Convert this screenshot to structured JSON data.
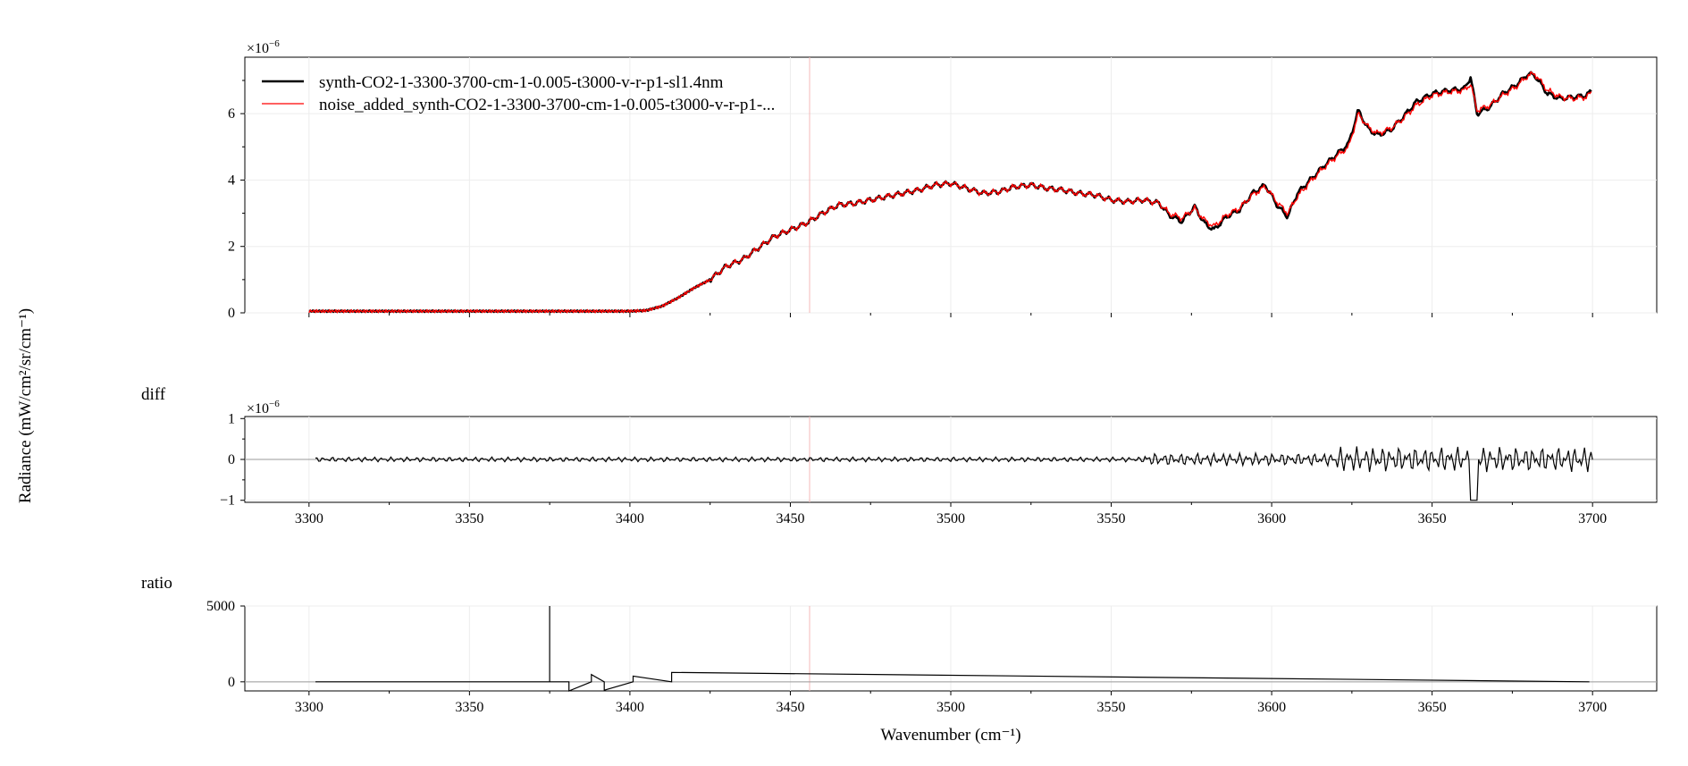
{
  "chart_data": [
    {
      "type": "line",
      "panel": "spectrum",
      "xlim": [
        3280,
        3720
      ],
      "ylim": [
        0,
        7.7
      ],
      "y_multiplier": "×10",
      "y_exponent": "−6",
      "yticks": [
        "0",
        "2",
        "4",
        "6"
      ],
      "ylabel": "Radiance (mW/cm²/sr/cm⁻¹)",
      "grid": true,
      "legend": "top-left",
      "series": [
        {
          "name": "synth-CO2-1-3300-3700-cm-1-0.005-t3000-v-r-p1-sl1.4nm",
          "color": "#000000",
          "x": [
            3300,
            3350,
            3400,
            3405,
            3410,
            3415,
            3420,
            3425,
            3430,
            3435,
            3440,
            3445,
            3450,
            3455,
            3460,
            3465,
            3470,
            3475,
            3480,
            3485,
            3490,
            3495,
            3500,
            3505,
            3510,
            3515,
            3520,
            3525,
            3530,
            3535,
            3540,
            3545,
            3550,
            3555,
            3560,
            3565,
            3568,
            3572,
            3576,
            3579,
            3582,
            3586,
            3590,
            3594,
            3598,
            3602,
            3605,
            3608,
            3612,
            3616,
            3620,
            3624,
            3627,
            3630,
            3633,
            3637,
            3641,
            3645,
            3650,
            3655,
            3660,
            3662,
            3664,
            3668,
            3672,
            3676,
            3680,
            3682,
            3686,
            3690,
            3694,
            3698,
            3700
          ],
          "y": [
            0.05,
            0.05,
            0.05,
            0.07,
            0.2,
            0.45,
            0.75,
            1.0,
            1.4,
            1.6,
            1.95,
            2.3,
            2.5,
            2.7,
            3.0,
            3.25,
            3.3,
            3.4,
            3.5,
            3.6,
            3.7,
            3.85,
            3.9,
            3.75,
            3.6,
            3.65,
            3.8,
            3.85,
            3.75,
            3.7,
            3.6,
            3.55,
            3.4,
            3.35,
            3.4,
            3.3,
            2.95,
            2.75,
            3.2,
            2.7,
            2.5,
            2.9,
            3.1,
            3.6,
            3.85,
            3.2,
            2.9,
            3.6,
            4.0,
            4.4,
            4.75,
            5.1,
            6.1,
            5.55,
            5.35,
            5.5,
            5.9,
            6.35,
            6.6,
            6.7,
            6.75,
            7.1,
            6.0,
            6.2,
            6.6,
            6.85,
            7.2,
            7.15,
            6.6,
            6.45,
            6.5,
            6.55,
            6.7
          ]
        },
        {
          "name": "noise_added_synth-CO2-1-3300-3700-cm-1-0.005-t3000-v-r-p1-...",
          "color": "#ff0000",
          "x": [
            3300,
            3350,
            3400,
            3405,
            3410,
            3415,
            3420,
            3425,
            3430,
            3435,
            3440,
            3445,
            3450,
            3455,
            3460,
            3465,
            3470,
            3475,
            3480,
            3485,
            3490,
            3495,
            3500,
            3505,
            3510,
            3515,
            3520,
            3525,
            3530,
            3535,
            3540,
            3545,
            3550,
            3555,
            3560,
            3565,
            3568,
            3572,
            3576,
            3579,
            3582,
            3586,
            3590,
            3594,
            3598,
            3602,
            3605,
            3608,
            3612,
            3616,
            3620,
            3624,
            3627,
            3630,
            3633,
            3637,
            3641,
            3645,
            3650,
            3655,
            3660,
            3662,
            3664,
            3668,
            3672,
            3676,
            3680,
            3682,
            3686,
            3690,
            3694,
            3698,
            3700
          ],
          "y": [
            0.05,
            0.05,
            0.05,
            0.07,
            0.2,
            0.45,
            0.75,
            1.0,
            1.4,
            1.6,
            1.95,
            2.3,
            2.5,
            2.7,
            3.0,
            3.25,
            3.3,
            3.4,
            3.5,
            3.6,
            3.7,
            3.85,
            3.9,
            3.75,
            3.6,
            3.65,
            3.8,
            3.85,
            3.75,
            3.7,
            3.6,
            3.55,
            3.4,
            3.35,
            3.4,
            3.3,
            3.0,
            2.85,
            3.15,
            2.8,
            2.6,
            2.95,
            3.15,
            3.55,
            3.8,
            3.3,
            3.0,
            3.5,
            3.95,
            4.35,
            4.7,
            5.0,
            6.0,
            5.6,
            5.4,
            5.55,
            5.85,
            6.25,
            6.55,
            6.65,
            6.7,
            6.9,
            6.1,
            6.25,
            6.55,
            6.8,
            7.15,
            7.2,
            6.7,
            6.5,
            6.45,
            6.5,
            6.65
          ]
        }
      ]
    },
    {
      "type": "line",
      "panel": "diff",
      "title": "diff",
      "xlim": [
        3280,
        3720
      ],
      "ylim": [
        -1.05,
        1.05
      ],
      "y_multiplier": "×10",
      "y_exponent": "−6",
      "yticks": [
        "−1",
        "0",
        "1"
      ],
      "xticks": [
        "3300",
        "3350",
        "3400",
        "3450",
        "3500",
        "3550",
        "3600",
        "3650",
        "3700"
      ],
      "grid": true,
      "series": [
        {
          "color": "#000000",
          "x": [
            3302,
            3700
          ],
          "y": [
            0,
            0
          ]
        }
      ]
    },
    {
      "type": "line",
      "panel": "ratio",
      "title": "ratio",
      "xlim": [
        3280,
        3720
      ],
      "ylim": [
        -600,
        5000
      ],
      "yticks": [
        "0",
        "5000"
      ],
      "xticks": [
        "3300",
        "3350",
        "3400",
        "3450",
        "3500",
        "3550",
        "3600",
        "3650",
        "3700"
      ],
      "xlabel": "Wavenumber (cm⁻¹)",
      "grid": true,
      "series": [
        {
          "color": "#000000",
          "x": [
            3302,
            3375,
            3375,
            3375,
            3381,
            3381,
            3388,
            3388,
            3392,
            3392,
            3401,
            3401,
            3413,
            3413,
            3699
          ],
          "y": [
            0,
            0,
            5000,
            0,
            0,
            -600,
            0,
            480,
            0,
            -550,
            0,
            380,
            0,
            620,
            0
          ]
        }
      ]
    }
  ]
}
